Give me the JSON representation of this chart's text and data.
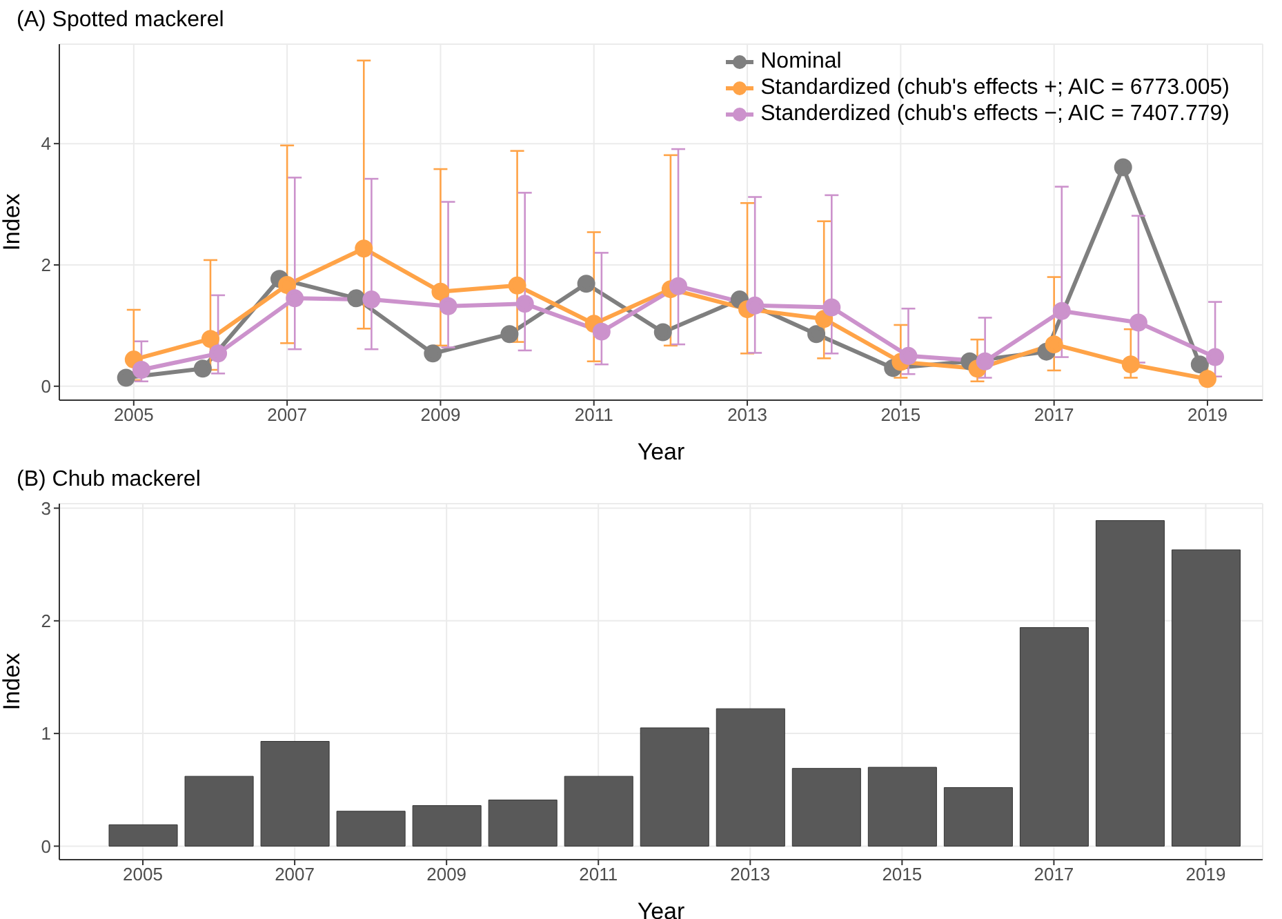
{
  "chart_data": [
    {
      "type": "line",
      "title": "(A) Spotted mackerel",
      "xlabel": "Year",
      "ylabel": "Index",
      "x": [
        2005,
        2006,
        2007,
        2008,
        2009,
        2010,
        2011,
        2012,
        2013,
        2014,
        2015,
        2016,
        2017,
        2018,
        2019
      ],
      "series": [
        {
          "name": "Nominal",
          "color": "#7f7f7f",
          "x": [
            2004.9,
            2005.9,
            2006.9,
            2007.9,
            2008.9,
            2009.9,
            2010.9,
            2011.9,
            2012.9,
            2013.9,
            2014.9,
            2015.9,
            2016.9,
            2017.9,
            2018.9
          ],
          "values": [
            0.14,
            0.29,
            1.77,
            1.45,
            0.54,
            0.86,
            1.69,
            0.89,
            1.43,
            0.86,
            0.3,
            0.41,
            0.57,
            3.61,
            0.36
          ]
        },
        {
          "name": "Standardized (chub's effects +; AIC = 6773.005)",
          "color": "#ffa347",
          "values": [
            0.44,
            0.78,
            1.67,
            2.27,
            1.56,
            1.66,
            1.03,
            1.6,
            1.27,
            1.11,
            0.4,
            0.29,
            0.69,
            0.36,
            0.12
          ],
          "errors": [
            [
              0.1,
              1.26
            ],
            [
              0.27,
              2.08
            ],
            [
              0.71,
              3.97
            ],
            [
              0.95,
              5.37
            ],
            [
              0.67,
              3.58
            ],
            [
              0.73,
              3.88
            ],
            [
              0.41,
              2.54
            ],
            [
              0.67,
              3.81
            ],
            [
              0.54,
              3.02
            ],
            [
              0.46,
              2.72
            ],
            [
              0.14,
              1.01
            ],
            [
              0.08,
              0.77
            ],
            [
              0.26,
              1.8
            ],
            [
              0.14,
              0.94
            ],
            [
              0.05,
              0.39
            ]
          ]
        },
        {
          "name": "Standerdized (chub's effects −; AIC = 7407.779)",
          "color": "#cc92cc",
          "x": [
            2005.1,
            2006.1,
            2007.1,
            2008.1,
            2009.1,
            2010.1,
            2011.1,
            2012.1,
            2013.1,
            2014.1,
            2015.1,
            2016.1,
            2017.1,
            2018.1,
            2019.1
          ],
          "values": [
            0.27,
            0.54,
            1.45,
            1.43,
            1.32,
            1.36,
            0.9,
            1.65,
            1.33,
            1.3,
            0.5,
            0.41,
            1.24,
            1.05,
            0.48
          ],
          "errors": [
            [
              0.08,
              0.74
            ],
            [
              0.21,
              1.5
            ],
            [
              0.61,
              3.44
            ],
            [
              0.61,
              3.42
            ],
            [
              0.64,
              3.04
            ],
            [
              0.59,
              3.19
            ],
            [
              0.36,
              2.2
            ],
            [
              0.69,
              3.91
            ],
            [
              0.55,
              3.12
            ],
            [
              0.54,
              3.15
            ],
            [
              0.2,
              1.28
            ],
            [
              0.14,
              1.13
            ],
            [
              0.48,
              3.29
            ],
            [
              0.39,
              2.81
            ],
            [
              0.16,
              1.39
            ]
          ]
        }
      ],
      "xlim": [
        2004.03,
        2019.72
      ],
      "xticks": [
        2005,
        2007,
        2009,
        2011,
        2013,
        2015,
        2017,
        2019
      ],
      "ylim": [
        -0.23,
        5.64
      ],
      "yticks": [
        0,
        2,
        4
      ],
      "grid": true,
      "legend": "top right",
      "marker": "circle",
      "line_style": "solid"
    },
    {
      "type": "bar",
      "title": "(B) Chub mackerel",
      "xlabel": "Year",
      "ylabel": "Index",
      "x": [
        2005,
        2006,
        2007,
        2008,
        2009,
        2010,
        2011,
        2012,
        2013,
        2014,
        2015,
        2016,
        2017,
        2018,
        2019
      ],
      "values": [
        0.19,
        0.62,
        0.93,
        0.31,
        0.36,
        0.41,
        0.62,
        1.05,
        1.22,
        0.69,
        0.7,
        0.52,
        1.94,
        2.89,
        2.63
      ],
      "color": "#595959",
      "xlim": [
        2003.9,
        2019.75
      ],
      "xticks": [
        2005,
        2007,
        2009,
        2011,
        2013,
        2015,
        2017,
        2019
      ],
      "ylim": [
        -0.12,
        3.04
      ],
      "yticks": [
        0,
        1,
        2,
        3
      ],
      "grid": true
    }
  ]
}
